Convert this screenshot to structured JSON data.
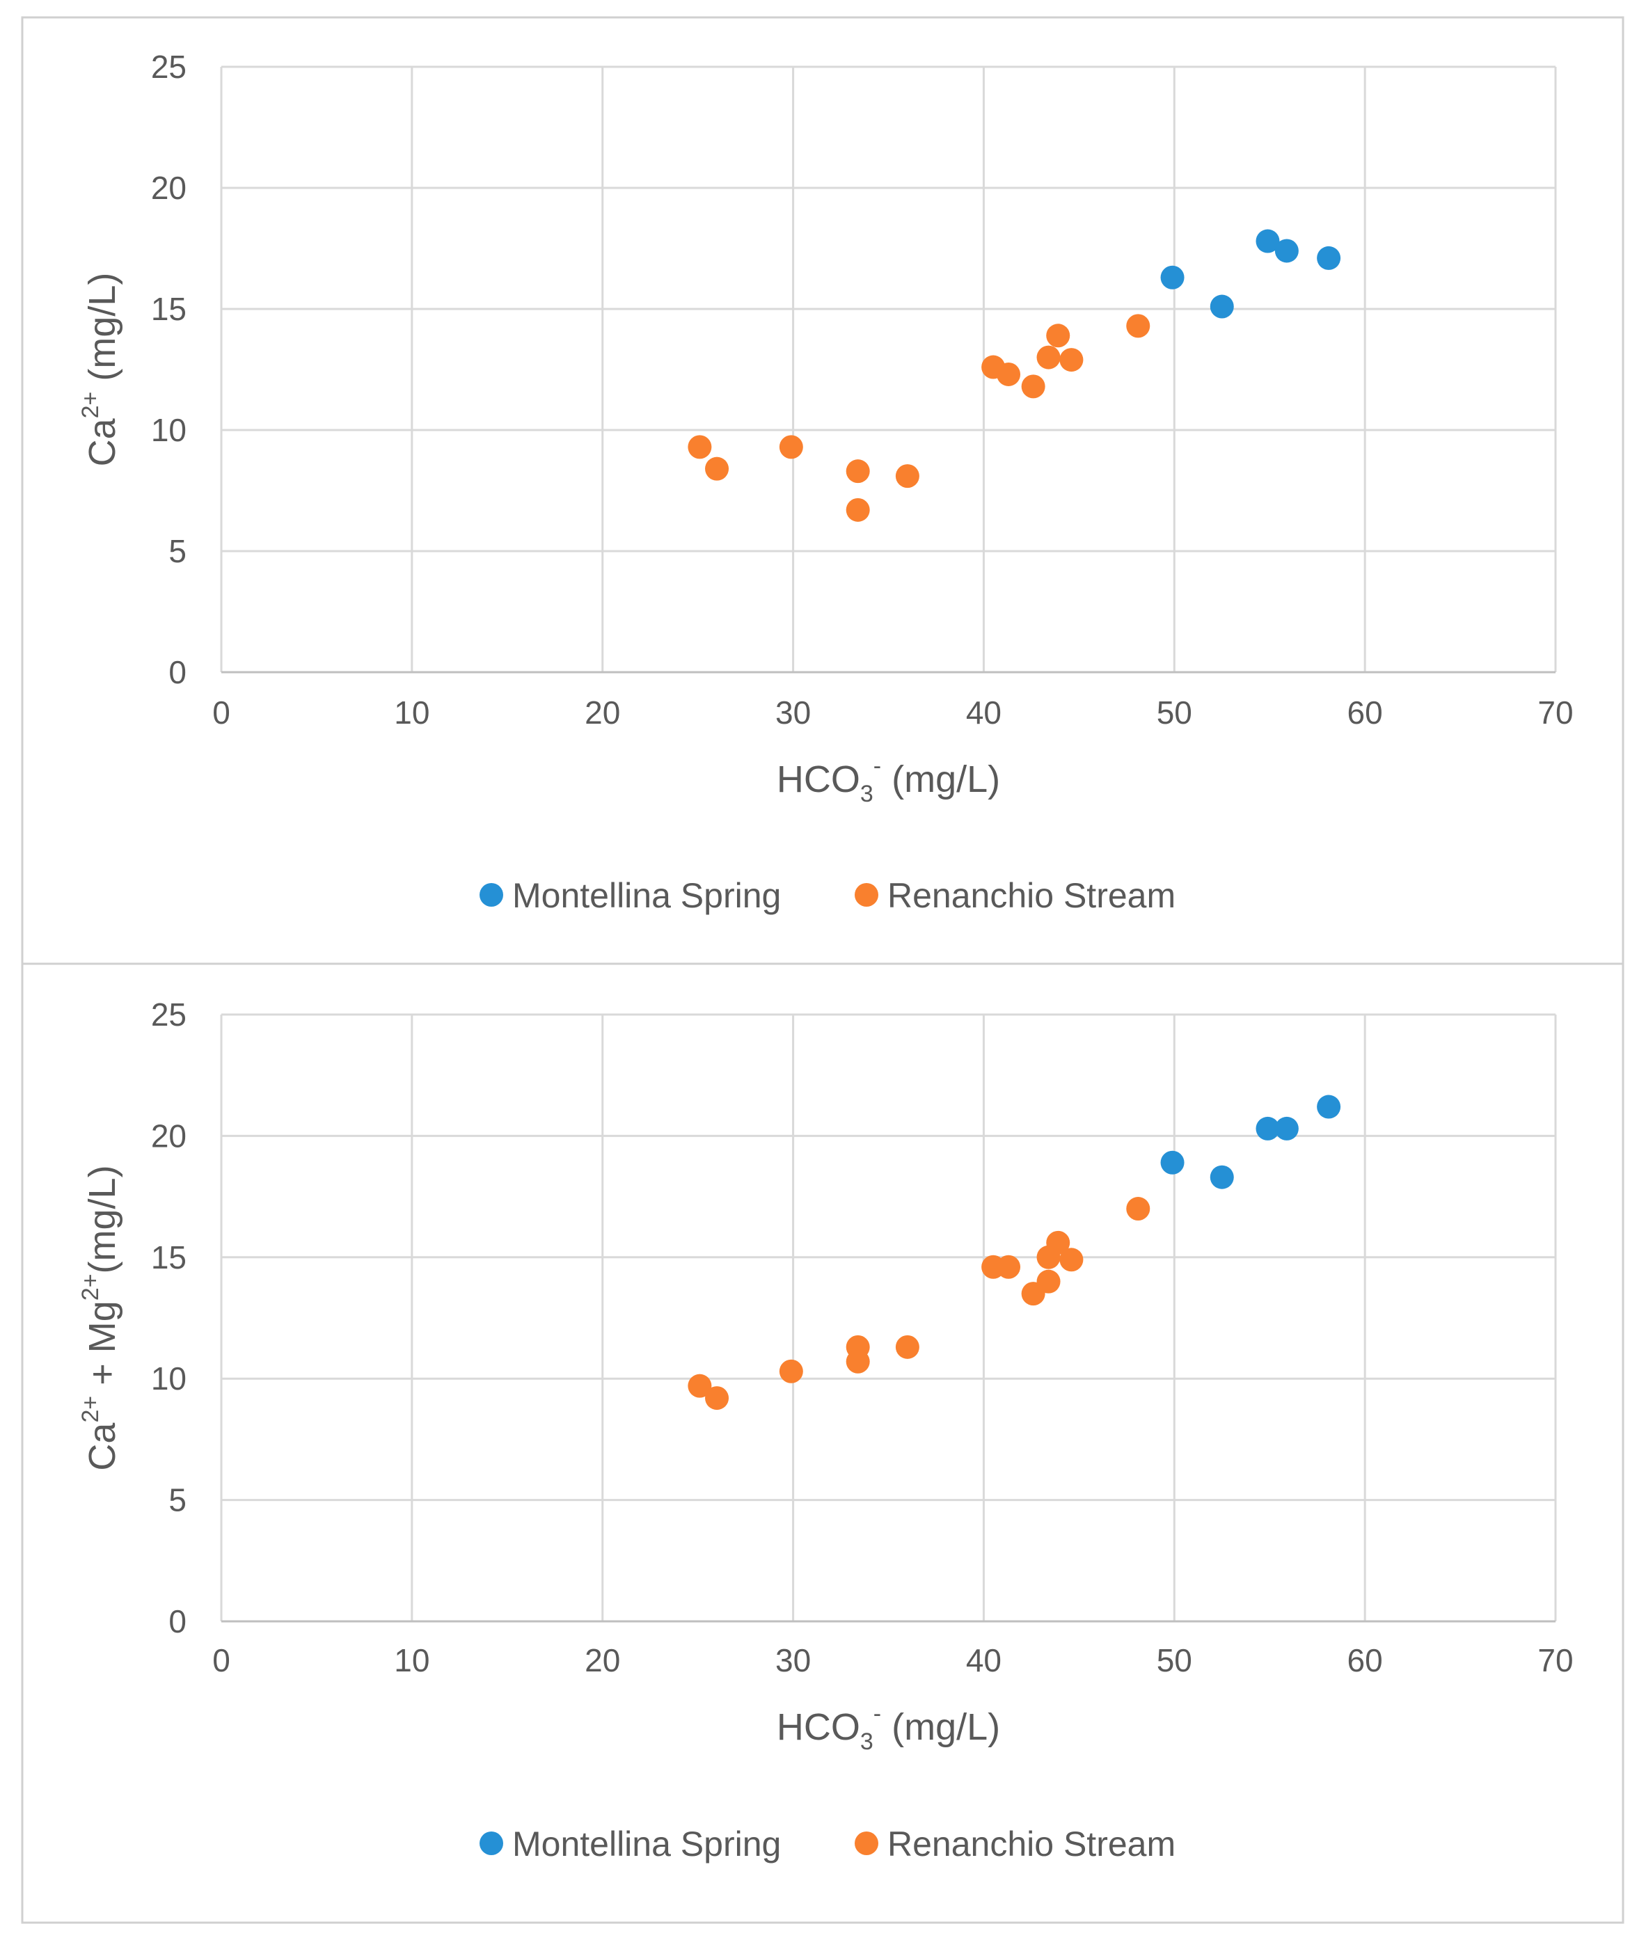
{
  "colors": {
    "montellina": "#2590d5",
    "renanchio": "#f9802e",
    "grid": "#d9d9d9",
    "axis": "#bfbfbf",
    "text": "#595959",
    "panel_border": "#d0d0d0"
  },
  "chart_data": [
    {
      "type": "scatter",
      "xlabel": {
        "base": "HCO",
        "sub": "3",
        "sup": "-",
        "unit": " (mg/L)"
      },
      "ylabel": {
        "parts": [
          {
            "t": "Ca",
            "s": ""
          },
          {
            "t": "2+",
            "s": "sup"
          },
          {
            "t": " (mg/L)",
            "s": ""
          }
        ]
      },
      "xlim": [
        0,
        70
      ],
      "ylim": [
        0,
        25
      ],
      "x_ticks": [
        "0",
        "10",
        "20",
        "30",
        "40",
        "50",
        "60",
        "70"
      ],
      "y_ticks": [
        "0",
        "5",
        "10",
        "15",
        "20",
        "25"
      ],
      "grid": true,
      "legend_position": "bottom-center",
      "series": [
        {
          "name": "Montellina Spring",
          "color": "#2590d5",
          "x": [
            49.9,
            52.5,
            54.9,
            55.9,
            58.1
          ],
          "y": [
            16.3,
            15.1,
            17.8,
            17.4,
            17.1
          ]
        },
        {
          "name": "Renanchio Stream",
          "color": "#f9802e",
          "x": [
            25.1,
            26.0,
            29.9,
            33.4,
            33.4,
            36.0,
            40.5,
            41.3,
            42.6,
            43.4,
            43.9,
            44.6,
            48.1
          ],
          "y": [
            9.3,
            8.4,
            9.3,
            8.3,
            6.7,
            8.1,
            12.6,
            12.3,
            11.8,
            13.0,
            13.9,
            12.9,
            14.3
          ]
        }
      ]
    },
    {
      "type": "scatter",
      "xlabel": {
        "base": "HCO",
        "sub": "3",
        "sup": "-",
        "unit": " (mg/L)"
      },
      "ylabel": {
        "parts": [
          {
            "t": "Ca",
            "s": ""
          },
          {
            "t": "2+",
            "s": "sup"
          },
          {
            "t": " + Mg",
            "s": ""
          },
          {
            "t": "2+",
            "s": "sup"
          },
          {
            "t": "(mg/L)",
            "s": ""
          }
        ]
      },
      "xlim": [
        0,
        70
      ],
      "ylim": [
        0,
        25
      ],
      "x_ticks": [
        "0",
        "10",
        "20",
        "30",
        "40",
        "50",
        "60",
        "70"
      ],
      "y_ticks": [
        "0",
        "5",
        "10",
        "15",
        "20",
        "25"
      ],
      "grid": true,
      "legend_position": "bottom-center",
      "series": [
        {
          "name": "Montellina Spring",
          "color": "#2590d5",
          "x": [
            49.9,
            52.5,
            54.9,
            55.9,
            58.1
          ],
          "y": [
            18.9,
            18.3,
            20.3,
            20.3,
            21.2
          ]
        },
        {
          "name": "Renanchio Stream",
          "color": "#f9802e",
          "x": [
            25.1,
            26.0,
            29.9,
            33.4,
            33.4,
            36.0,
            40.5,
            41.3,
            42.6,
            43.4,
            43.4,
            43.9,
            44.6,
            48.1
          ],
          "y": [
            9.7,
            9.2,
            10.3,
            11.3,
            10.7,
            11.3,
            14.6,
            14.6,
            13.5,
            14.0,
            15.0,
            15.6,
            14.9,
            17.0
          ]
        }
      ]
    }
  ]
}
